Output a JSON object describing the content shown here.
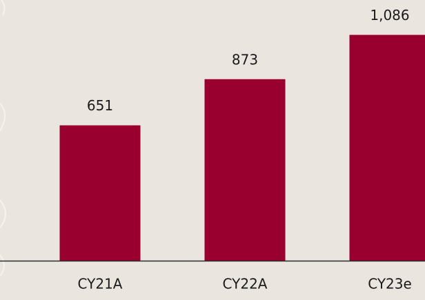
{
  "chart_data": {
    "type": "bar",
    "categories": [
      "CY21A",
      "CY22A",
      "CY23e"
    ],
    "values": [
      651,
      873,
      1086
    ],
    "value_labels": [
      "651",
      "873",
      "1,086"
    ],
    "color": "#990030"
  }
}
